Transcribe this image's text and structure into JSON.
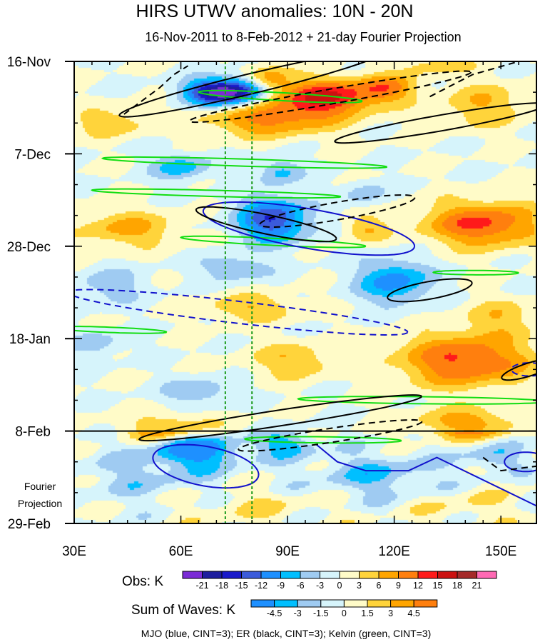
{
  "chart_data": {
    "type": "heatmap",
    "title": "HIRS UTWV anomalies: 10N - 20N",
    "subtitle": "16-Nov-2011 to 8-Feb-2012 + 21-day Fourier Projection",
    "x_axis": {
      "tick_labels": [
        "30E",
        "60E",
        "90E",
        "120E",
        "150E"
      ],
      "ticks": [
        30,
        60,
        90,
        120,
        150
      ],
      "range": [
        30,
        160
      ],
      "units": "degrees east longitude"
    },
    "y_axis": {
      "tick_labels": [
        "16-Nov",
        "7-Dec",
        "28-Dec",
        "18-Jan",
        "8-Feb",
        "29-Feb"
      ],
      "range_days": [
        0,
        105
      ],
      "tick_days": [
        0,
        21,
        42,
        63,
        84,
        105
      ]
    },
    "projection_start_day": 84,
    "projection_label": [
      "Fourier",
      "Projection"
    ],
    "reference_longitudes": [
      72.5,
      80
    ],
    "obs_legend": {
      "title": "Obs: K",
      "levels": [
        "-21",
        "-18",
        "-15",
        "-12",
        "-9",
        "-6",
        "-3",
        "0",
        "3",
        "6",
        "9",
        "12",
        "15",
        "18",
        "21"
      ],
      "colors": [
        "#7b2bd6",
        "#1e1e9e",
        "#1a1acb",
        "#3b5bdb",
        "#1e90ff",
        "#00bfff",
        "#9fcbf2",
        "#d6f4fb",
        "#fffbc8",
        "#ffd43b",
        "#ffa500",
        "#ff7f0e",
        "#ff1a1a",
        "#cc1111",
        "#a52a2a",
        "#ff69b4"
      ]
    },
    "waves_legend": {
      "title": "Sum of Waves: K",
      "levels": [
        "-4.5",
        "-3",
        "-1.5",
        "0",
        "1.5",
        "3",
        "4.5"
      ],
      "colors": [
        "#1e90ff",
        "#00bfff",
        "#9fcbf2",
        "#d6f4fb",
        "#fffbc8",
        "#ffd43b",
        "#ffa500",
        "#ff7f0e"
      ]
    },
    "contour_caption": "MJO (blue, CINT=3); ER (black, CINT=3); Kelvin (green, CINT=3)",
    "contours": {
      "MJO": {
        "color": "#1111cc",
        "cint": 3
      },
      "ER": {
        "color": "#000000",
        "cint": 3
      },
      "Kelvin": {
        "color": "#11dd11",
        "cint": 3
      }
    },
    "anomaly_field": [
      {
        "lon": 70,
        "day": 7,
        "lon_radius": 9,
        "day_radius": 3,
        "value": -20
      },
      {
        "lon": 78,
        "day": 7,
        "lon_radius": 8,
        "day_radius": 3,
        "value": -10
      },
      {
        "lon": 101,
        "day": 8,
        "lon_radius": 14,
        "day_radius": 4,
        "value": 15
      },
      {
        "lon": 85,
        "day": 4,
        "lon_radius": 6,
        "day_radius": 3,
        "value": 8
      },
      {
        "lon": 85,
        "day": 13,
        "lon_radius": 18,
        "day_radius": 4,
        "value": 10
      },
      {
        "lon": 118,
        "day": 6,
        "lon_radius": 8,
        "day_radius": 3,
        "value": 9
      },
      {
        "lon": 40,
        "day": 14,
        "lon_radius": 10,
        "day_radius": 3,
        "value": 6
      },
      {
        "lon": 145,
        "day": 10,
        "lon_radius": 12,
        "day_radius": 5,
        "value": 6
      },
      {
        "lon": 132,
        "day": 1,
        "lon_radius": 10,
        "day_radius": 2,
        "value": 5
      },
      {
        "lon": 60,
        "day": 24,
        "lon_radius": 8,
        "day_radius": 3,
        "value": -8
      },
      {
        "lon": 88,
        "day": 25,
        "lon_radius": 6,
        "day_radius": 3,
        "value": -7
      },
      {
        "lon": 86,
        "day": 36,
        "lon_radius": 10,
        "day_radius": 5,
        "value": -15
      },
      {
        "lon": 112,
        "day": 30,
        "lon_radius": 6,
        "day_radius": 3,
        "value": -5
      },
      {
        "lon": 145,
        "day": 37,
        "lon_radius": 16,
        "day_radius": 5,
        "value": 13
      },
      {
        "lon": 45,
        "day": 38,
        "lon_radius": 14,
        "day_radius": 4,
        "value": 7
      },
      {
        "lon": 112,
        "day": 38,
        "lon_radius": 6,
        "day_radius": 3,
        "value": 6
      },
      {
        "lon": 75,
        "day": 47,
        "lon_radius": 10,
        "day_radius": 3,
        "value": -6
      },
      {
        "lon": 120,
        "day": 50,
        "lon_radius": 10,
        "day_radius": 5,
        "value": -11
      },
      {
        "lon": 40,
        "day": 51,
        "lon_radius": 10,
        "day_radius": 4,
        "value": -5
      },
      {
        "lon": 80,
        "day": 56,
        "lon_radius": 14,
        "day_radius": 3,
        "value": 6
      },
      {
        "lon": 150,
        "day": 58,
        "lon_radius": 10,
        "day_radius": 4,
        "value": 5
      },
      {
        "lon": 36,
        "day": 64,
        "lon_radius": 8,
        "day_radius": 3,
        "value": -5
      },
      {
        "lon": 140,
        "day": 68,
        "lon_radius": 18,
        "day_radius": 6,
        "value": 13
      },
      {
        "lon": 92,
        "day": 68,
        "lon_radius": 12,
        "day_radius": 4,
        "value": 6
      },
      {
        "lon": 65,
        "day": 75,
        "lon_radius": 10,
        "day_radius": 3,
        "value": -6
      },
      {
        "lon": 140,
        "day": 82,
        "lon_radius": 14,
        "day_radius": 3,
        "value": 8
      },
      {
        "lon": 58,
        "day": 83,
        "lon_radius": 14,
        "day_radius": 3,
        "value": 6
      },
      {
        "lon": 65,
        "day": 88,
        "lon_radius": 12,
        "day_radius": 4,
        "value": -6
      },
      {
        "lon": 90,
        "day": 87,
        "lon_radius": 8,
        "day_radius": 3,
        "value": -4
      },
      {
        "lon": 115,
        "day": 94,
        "lon_radius": 18,
        "day_radius": 5,
        "value": -3
      },
      {
        "lon": 50,
        "day": 94,
        "lon_radius": 20,
        "day_radius": 6,
        "value": -2
      },
      {
        "lon": 148,
        "day": 90,
        "lon_radius": 8,
        "day_radius": 3,
        "value": -3
      },
      {
        "lon": 80,
        "day": 101,
        "lon_radius": 20,
        "day_radius": 4,
        "value": 1.5
      },
      {
        "lon": 140,
        "day": 101,
        "lon_radius": 14,
        "day_radius": 4,
        "value": 1.5
      }
    ]
  }
}
